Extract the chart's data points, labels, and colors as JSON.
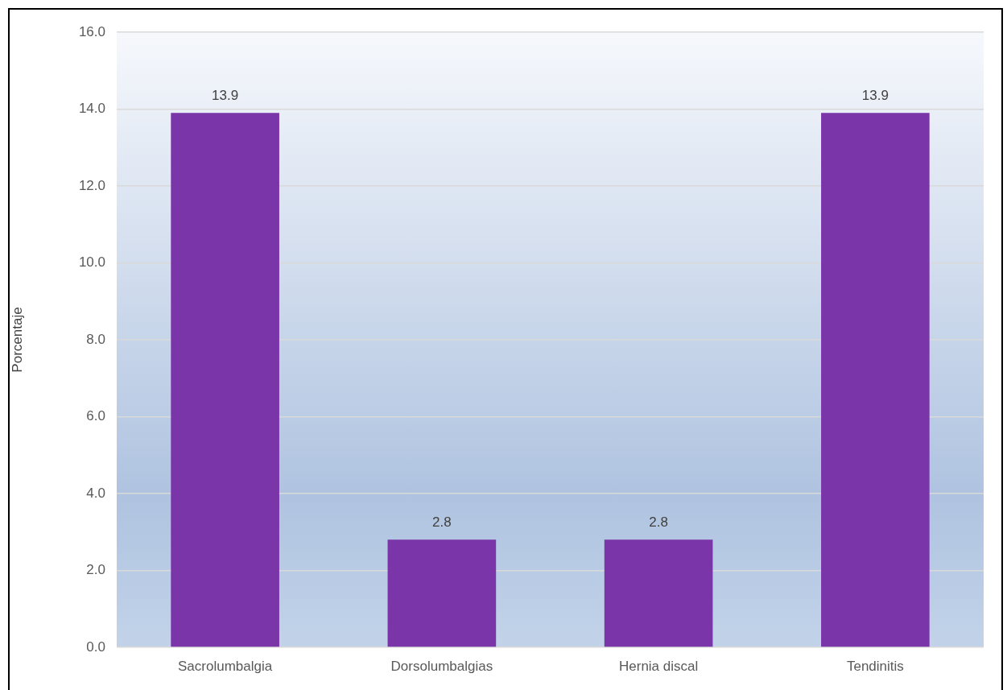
{
  "chart_data": {
    "type": "bar",
    "ylabel": "Porcentaje",
    "categories": [
      "Sacrolumbalgia",
      "Dorsolumbalgias",
      "Hernia discal",
      "Tendinitis"
    ],
    "values": [
      13.9,
      2.8,
      2.8,
      13.9
    ],
    "color": "#7a35a8",
    "ylim": [
      0,
      16
    ],
    "yticks": [
      {
        "value": 0,
        "label": "0.0"
      },
      {
        "value": 2,
        "label": "2.0"
      },
      {
        "value": 4,
        "label": "4.0"
      },
      {
        "value": 6,
        "label": "6.0"
      },
      {
        "value": 8,
        "label": "8.0"
      },
      {
        "value": 10,
        "label": "10.0"
      },
      {
        "value": 12,
        "label": "12.0"
      },
      {
        "value": 14,
        "label": "14.0"
      },
      {
        "value": 16,
        "label": "16.0"
      }
    ],
    "grid": "y",
    "data_labels": true
  }
}
